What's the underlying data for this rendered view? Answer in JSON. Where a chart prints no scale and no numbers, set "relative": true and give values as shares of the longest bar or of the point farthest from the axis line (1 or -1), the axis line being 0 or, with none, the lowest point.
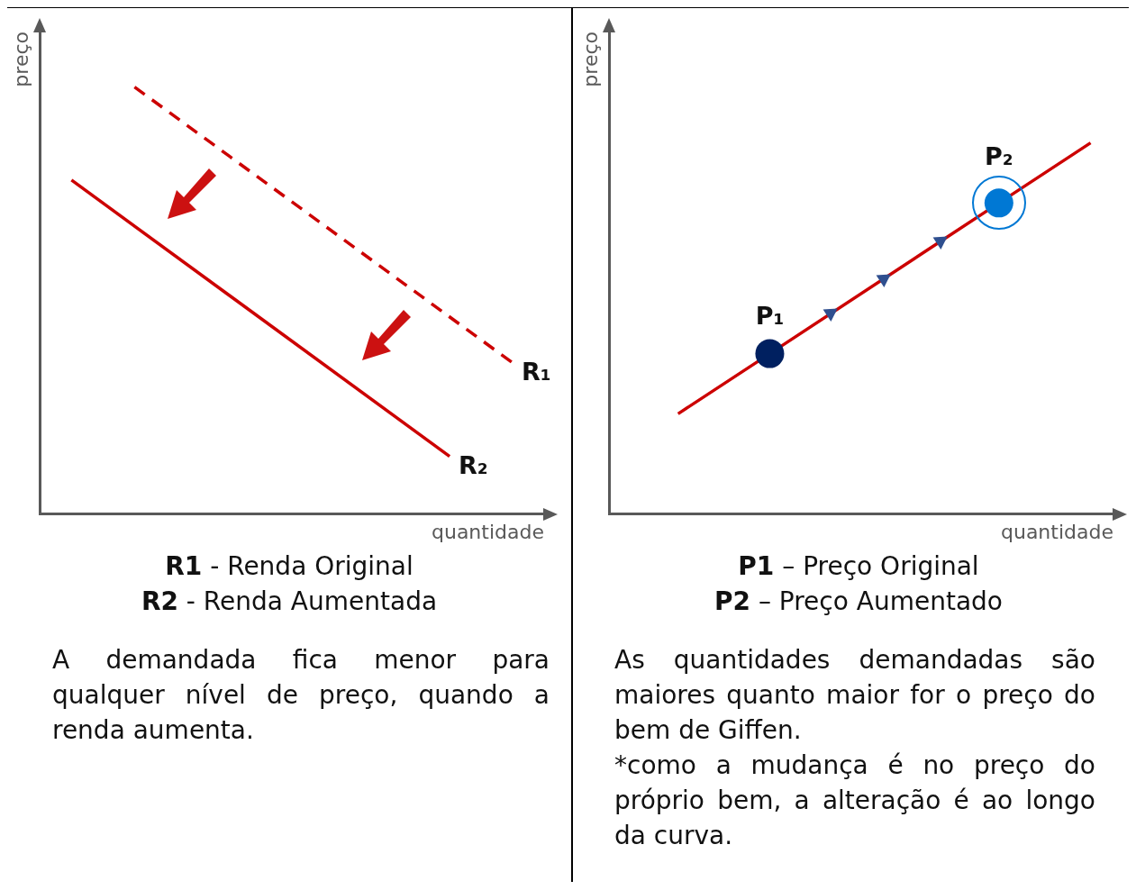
{
  "chart_data": [
    {
      "type": "line",
      "relative": true,
      "xlabel": "quantidade",
      "ylabel": "preço",
      "grid": false,
      "legend": false,
      "tick_labels": false,
      "marker": "none",
      "categories": [
        null,
        null,
        null,
        null,
        null,
        null,
        null,
        null
      ],
      "series": [
        {
          "name": "R₁",
          "color": "#cc0000",
          "line_style": "dashed",
          "values": [
            null,
            1,
            null,
            null,
            null,
            null,
            null,
            0.354
          ]
        },
        {
          "name": "R₂",
          "color": "#cc0000",
          "line_style": "solid",
          "values": [
            0.782,
            null,
            null,
            null,
            null,
            null,
            0.135,
            null
          ]
        }
      ],
      "annotations": [
        "R1 - Renda Original",
        "R2 - Renda Aumentada",
        "A demandada fica menor para qualquer nível de preço, quando a renda aumenta."
      ]
    },
    {
      "type": "line",
      "relative": true,
      "xlabel": "quantidade",
      "ylabel": "preço",
      "grid": false,
      "legend": false,
      "tick_labels": false,
      "marker": "circle",
      "categories": [
        null,
        null,
        null,
        null,
        null,
        null,
        null,
        null,
        null,
        null,
        null
      ],
      "series": [
        {
          "color": "#cc0000",
          "line_style": "solid",
          "values": [
            null,
            0.27,
            null,
            0.432,
            null,
            null,
            null,
            null,
            0.838,
            null,
            1
          ],
          "colors": [
            null,
            null,
            null,
            "#002060",
            null,
            null,
            null,
            null,
            "#0078d4",
            null,
            null
          ]
        }
      ],
      "annotations": [
        {
          "text": "P₁",
          "y": 0.432
        },
        {
          "text": "P₂",
          "y": 0.838
        },
        "P1 – Preço Original",
        "P2 – Preço Aumentado",
        "As quantidades demandadas são maiores quanto maior for o preço do bem de Giffen.",
        "*como a mudança é no preço do próprio bem, a alteração é ao longo da curva."
      ]
    }
  ]
}
